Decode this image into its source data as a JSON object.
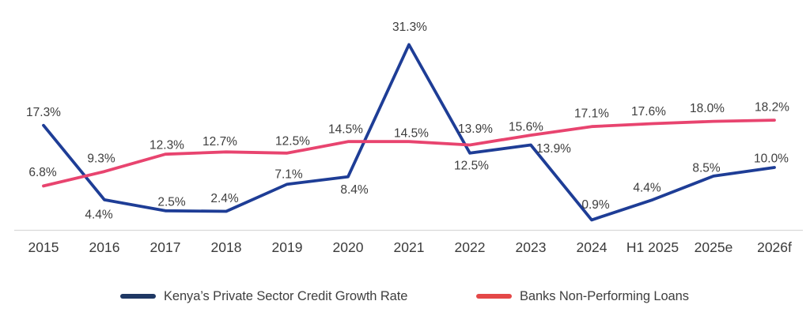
{
  "chart_data": {
    "type": "line",
    "categories": [
      "2015",
      "2016",
      "2017",
      "2018",
      "2019",
      "2020",
      "2021",
      "2022",
      "2023",
      "2024",
      "H1 2025",
      "2025e",
      "2026f"
    ],
    "series": [
      {
        "name": "Kenya’s Private Sector Credit Growth Rate",
        "color": "#1e3d96",
        "legend_color": "#1f3864",
        "values": [
          17.3,
          4.4,
          2.5,
          2.4,
          7.1,
          8.4,
          31.3,
          12.5,
          13.9,
          0.9,
          4.4,
          8.5,
          10.0
        ],
        "labels": [
          "17.3%",
          "4.4%",
          "2.5%",
          "2.4%",
          "7.1%",
          "8.4%",
          "31.3%",
          "12.5%",
          "13.9%",
          "0.9%",
          "4.4%",
          "8.5%",
          "10.0%"
        ]
      },
      {
        "name": "Banks Non-Performing Loans",
        "color": "#e8446f",
        "legend_color": "#e44848",
        "values": [
          6.8,
          9.3,
          12.3,
          12.7,
          12.5,
          14.5,
          14.5,
          13.9,
          15.6,
          17.1,
          17.6,
          18.0,
          18.2
        ],
        "labels": [
          "6.8%",
          "9.3%",
          "12.3%",
          "12.7%",
          "12.5%",
          "14.5%",
          "14.5%",
          "13.9%",
          "15.6%",
          "17.1%",
          "17.6%",
          "18.0%",
          "18.2%"
        ]
      }
    ],
    "title": "",
    "xlabel": "",
    "ylabel": "",
    "ylim": [
      0,
      34
    ],
    "grid": false,
    "legend_position": "bottom",
    "axis_line_color": "#d9d9d9",
    "label_color": "#3d3d3d",
    "tick_color": "#3b3b3b"
  }
}
